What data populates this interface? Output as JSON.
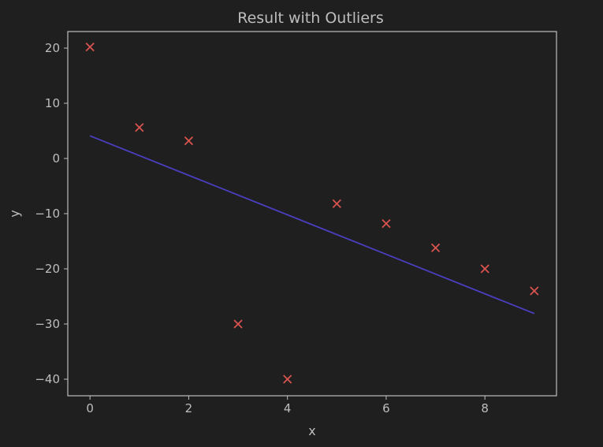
{
  "chart_data": {
    "type": "scatter",
    "title": "Result with Outliers",
    "xlabel": "x",
    "ylabel": "y",
    "xlim": [
      -0.45,
      9.45
    ],
    "ylim": [
      -43,
      23
    ],
    "xticks": [
      0,
      2,
      4,
      6,
      8
    ],
    "yticks": [
      20,
      10,
      0,
      -10,
      -20,
      -30,
      -40
    ],
    "ytick_labels": [
      "20",
      "10",
      "0",
      "−10",
      "−20",
      "−30",
      "−40"
    ],
    "grid": false,
    "points": {
      "marker": "x",
      "x": [
        0,
        1,
        2,
        3,
        4,
        5,
        6,
        7,
        8,
        9
      ],
      "y": [
        20.2,
        5.6,
        3.2,
        -30,
        -40,
        -8.2,
        -11.8,
        -16.2,
        -20,
        -24
      ]
    },
    "fit_line": {
      "x": [
        0,
        9
      ],
      "y": [
        4.1,
        -28.1
      ]
    },
    "colors": {
      "background": "#1f1f1f",
      "axes": "#bdbdbd",
      "text": "#bdbdbd",
      "points": "#d9534f",
      "line": "#4a3fbf"
    }
  }
}
